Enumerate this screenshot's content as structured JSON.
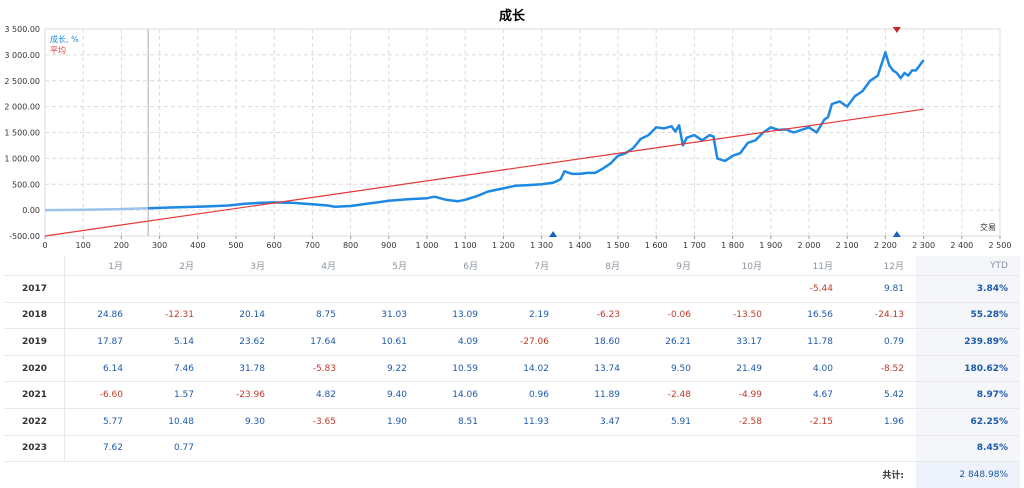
{
  "chart_data": {
    "type": "line",
    "title": "成长",
    "xlabel": "交易",
    "ylabel": "",
    "xlim": [
      0,
      2500
    ],
    "ylim": [
      -500,
      3500
    ],
    "x_ticks": [
      "0",
      "100",
      "200",
      "300",
      "400",
      "500",
      "600",
      "700",
      "800",
      "900",
      "1 000",
      "1 100",
      "1 200",
      "1 300",
      "1 400",
      "1 500",
      "1 600",
      "1 700",
      "1 800",
      "1 900",
      "2 000",
      "2 100",
      "2 200",
      "2 300",
      "2 400",
      "2 500"
    ],
    "y_ticks": [
      "-500.00",
      "0.00",
      "500.00",
      "1 000.00",
      "1 500.00",
      "2 000.00",
      "2 500.00",
      "3 000.00",
      "3 500.00"
    ],
    "grid": true,
    "legend": "top-left",
    "colors": {
      "growth": "#1e88e5",
      "history": "#9cc3ec",
      "average": "#e53935",
      "marker_top": "#c62828",
      "marker_bottom": "#1565c0"
    },
    "vertical_line_x": 270,
    "series": [
      {
        "name": "成长, %",
        "x": [
          0,
          100,
          200,
          270,
          280,
          350,
          420,
          480,
          520,
          560,
          600,
          650,
          700,
          740,
          760,
          800,
          850,
          900,
          950,
          1000,
          1020,
          1050,
          1080,
          1100,
          1130,
          1160,
          1200,
          1230,
          1260,
          1280,
          1300,
          1330,
          1340,
          1350,
          1360,
          1380,
          1400,
          1420,
          1440,
          1460,
          1480,
          1500,
          1520,
          1540,
          1560,
          1580,
          1600,
          1620,
          1640,
          1650,
          1660,
          1670,
          1680,
          1700,
          1720,
          1740,
          1750,
          1760,
          1780,
          1800,
          1820,
          1840,
          1860,
          1880,
          1900,
          1920,
          1940,
          1960,
          1980,
          2000,
          2020,
          2040,
          2050,
          2060,
          2080,
          2100,
          2120,
          2140,
          2160,
          2180,
          2200,
          2210,
          2220,
          2230,
          2240,
          2250,
          2260,
          2270,
          2280,
          2290,
          2300
        ],
        "y": [
          0,
          8,
          20,
          38,
          40,
          55,
          70,
          90,
          120,
          140,
          150,
          140,
          115,
          90,
          65,
          80,
          130,
          180,
          210,
          230,
          260,
          200,
          170,
          200,
          270,
          360,
          420,
          470,
          480,
          490,
          500,
          530,
          560,
          600,
          750,
          700,
          700,
          720,
          720,
          800,
          900,
          1050,
          1100,
          1200,
          1380,
          1450,
          1600,
          1580,
          1620,
          1520,
          1640,
          1250,
          1400,
          1450,
          1350,
          1450,
          1420,
          1000,
          950,
          1050,
          1100,
          1300,
          1350,
          1500,
          1600,
          1550,
          1560,
          1500,
          1550,
          1600,
          1500,
          1750,
          1800,
          2050,
          2100,
          2000,
          2200,
          2300,
          2500,
          2600,
          3050,
          2800,
          2700,
          2650,
          2550,
          2650,
          2600,
          2700,
          2700,
          2800,
          2900
        ]
      },
      {
        "name": "平均",
        "x": [
          0,
          2300
        ],
        "y": [
          -500,
          1950
        ]
      }
    ],
    "markers": [
      {
        "type": "top",
        "x": 2230
      },
      {
        "type": "bottom",
        "x": 1330
      },
      {
        "type": "bottom",
        "x": 2230
      }
    ]
  },
  "table": {
    "months": [
      "1月",
      "2月",
      "3月",
      "4月",
      "5月",
      "6月",
      "7月",
      "8月",
      "9月",
      "10月",
      "11月",
      "12月"
    ],
    "ytd_label": "YTD",
    "rows": [
      {
        "year": "2017",
        "values": [
          "",
          "",
          "",
          "",
          "",
          "",
          "",
          "",
          "",
          "",
          "-5.44",
          "9.81"
        ],
        "ytd": "3.84%"
      },
      {
        "year": "2018",
        "values": [
          "24.86",
          "-12.31",
          "20.14",
          "8.75",
          "31.03",
          "13.09",
          "2.19",
          "-6.23",
          "-0.06",
          "-13.50",
          "16.56",
          "-24.13"
        ],
        "ytd": "55.28%"
      },
      {
        "year": "2019",
        "values": [
          "17.87",
          "5.14",
          "23.62",
          "17.64",
          "10.61",
          "4.09",
          "-27.06",
          "18.60",
          "26.21",
          "33.17",
          "11.78",
          "0.79"
        ],
        "ytd": "239.89%"
      },
      {
        "year": "2020",
        "values": [
          "6.14",
          "7.46",
          "31.78",
          "-5.83",
          "9.22",
          "10.59",
          "14.02",
          "13.74",
          "9.50",
          "21.49",
          "4.00",
          "-8.52"
        ],
        "ytd": "180.62%"
      },
      {
        "year": "2021",
        "values": [
          "-6.60",
          "1.57",
          "-23.96",
          "4.82",
          "9.40",
          "14.06",
          "0.96",
          "11.89",
          "-2.48",
          "-4.99",
          "4.67",
          "5.42"
        ],
        "ytd": "8.97%"
      },
      {
        "year": "2022",
        "values": [
          "5.77",
          "10.48",
          "9.30",
          "-3.65",
          "1.90",
          "8.51",
          "11.93",
          "3.47",
          "5.91",
          "-2.58",
          "-2.15",
          "1.96"
        ],
        "ytd": "62.25%"
      },
      {
        "year": "2023",
        "values": [
          "7.62",
          "0.77",
          "",
          "",
          "",
          "",
          "",
          "",
          "",
          "",
          "",
          ""
        ],
        "ytd": "8.45%"
      }
    ],
    "total_label": "共计:",
    "total_value": "2 848.98%"
  }
}
